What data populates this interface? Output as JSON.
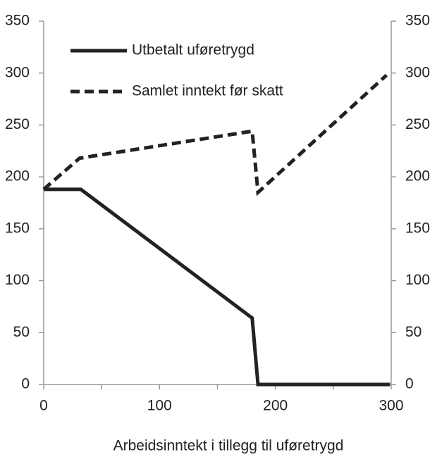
{
  "chart_data": {
    "type": "line",
    "xlabel": "Arbeidsinntekt i tillegg til uføretrygd",
    "series": [
      {
        "name": "Utbetalt uføretrygd",
        "color": "#222222",
        "dash": "solid",
        "x": [
          0,
          32,
          180,
          185,
          299
        ],
        "values": [
          188,
          188,
          64,
          0,
          0
        ]
      },
      {
        "name": "Samlet inntekt før skatt",
        "color": "#222222",
        "dash": "dashed",
        "x": [
          0,
          31,
          180,
          185,
          296
        ],
        "values": [
          188,
          218,
          244,
          185,
          298
        ]
      }
    ],
    "xlim": [
      0,
      300
    ],
    "xticks": [
      0,
      100,
      200,
      300
    ],
    "xminorticks": [
      50,
      150,
      250
    ],
    "ylim": [
      0,
      350
    ],
    "yticks": [
      0,
      50,
      100,
      150,
      200,
      250,
      300,
      350
    ],
    "y2lim": [
      0,
      350
    ],
    "y2ticks": [
      0,
      50,
      100,
      150,
      200,
      250,
      300,
      350
    ],
    "grid": false,
    "legend": "upper left"
  }
}
